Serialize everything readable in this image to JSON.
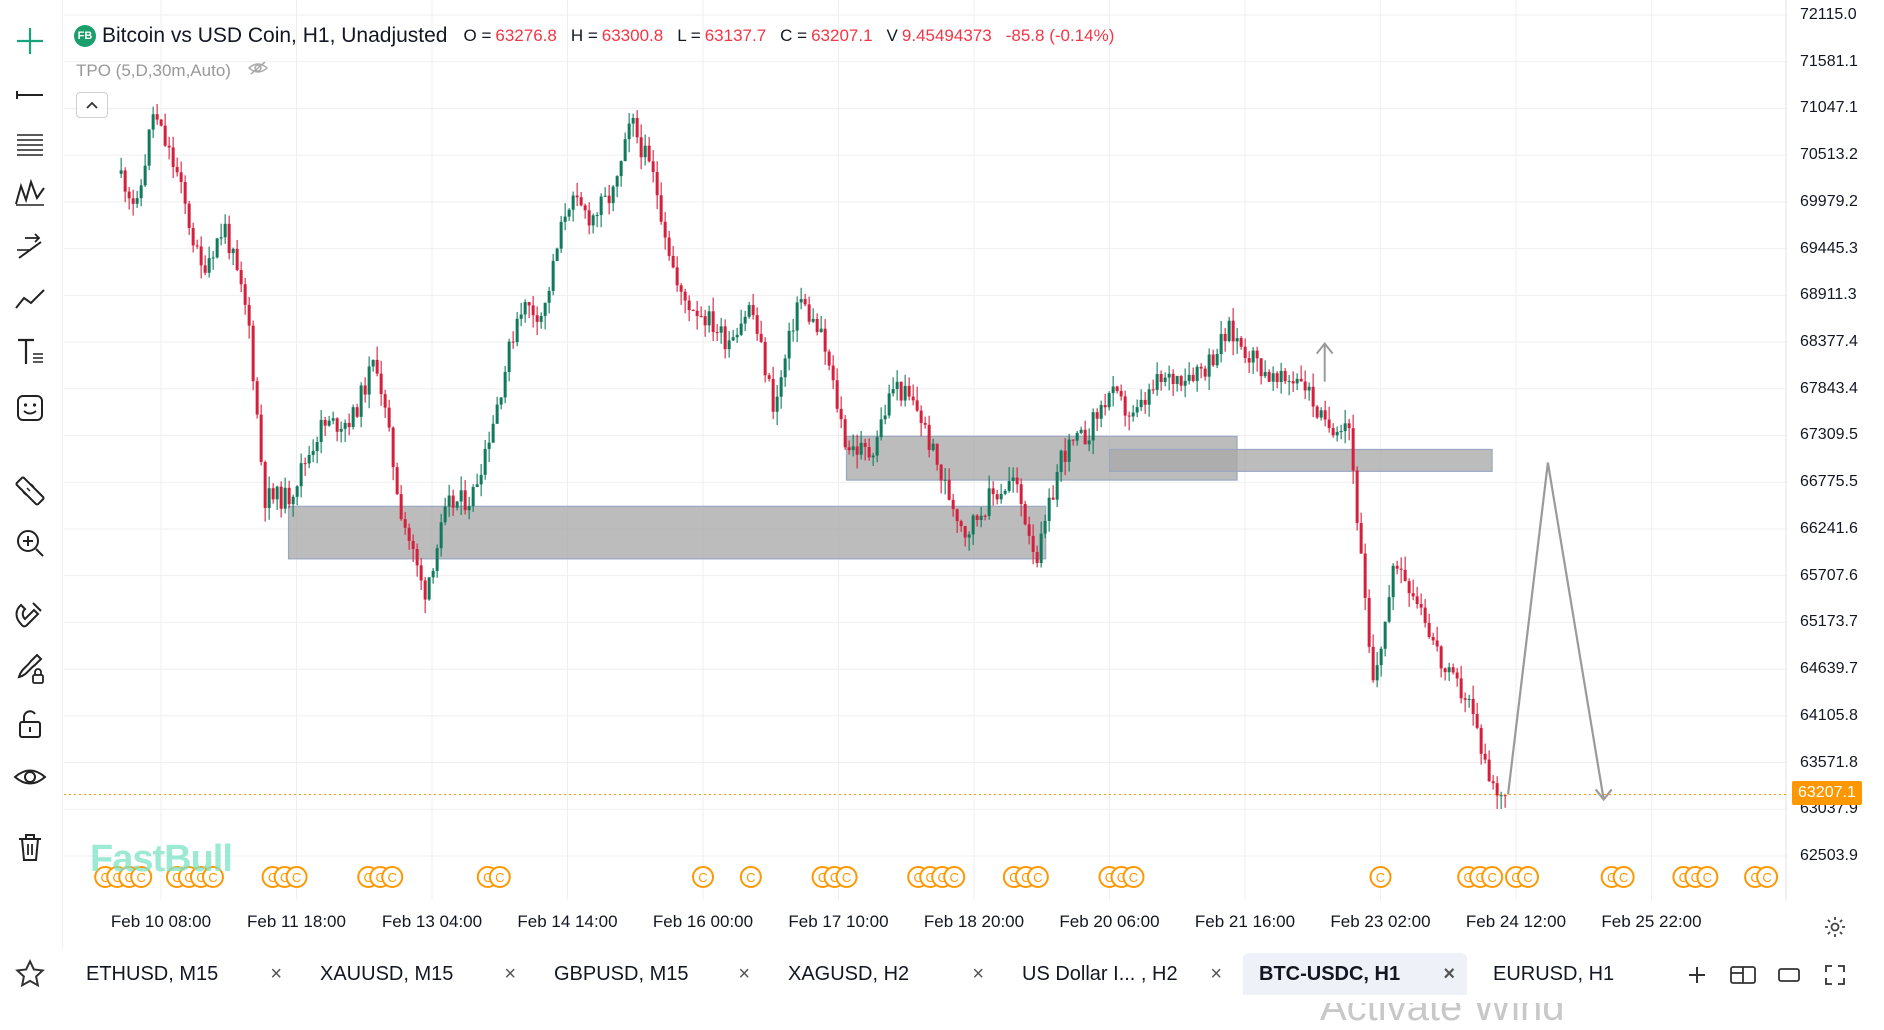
{
  "header": {
    "badge": "FB",
    "title": "Bitcoin vs USD Coin, H1, Unadjusted",
    "ohlc": [
      {
        "label": "O =",
        "value": "63276.8"
      },
      {
        "label": "H =",
        "value": "63300.8"
      },
      {
        "label": "L =",
        "value": "63137.7"
      },
      {
        "label": "C =",
        "value": "63207.1"
      },
      {
        "label": "V",
        "value": "9.45494373"
      }
    ],
    "change": "-85.8 (-0.14%)",
    "indicator": "TPO (5,D,30m,Auto)"
  },
  "colors": {
    "up": "#0f7a5c",
    "down": "#d61f3c",
    "box": "#a9a9a9",
    "orange": "#ff9800",
    "arrow": "#9a9a9a",
    "grid": "#efefef"
  },
  "toolbar": [
    "crosshair-icon",
    "horizontal-line-icon",
    "fib-retracement-icon",
    "pattern-icon",
    "projection-icon",
    "trend-line-icon",
    "text-tool-icon",
    "emoji-icon",
    "ruler-icon",
    "zoom-in-icon",
    "magnet-icon",
    "brush-lock-icon",
    "lock-icon",
    "eye-icon",
    "trash-icon"
  ],
  "price_axis": [
    "72115.0",
    "71581.1",
    "71047.1",
    "70513.2",
    "69979.2",
    "69445.3",
    "68911.3",
    "68377.4",
    "67843.4",
    "67309.5",
    "66775.5",
    "66241.6",
    "65707.6",
    "65173.7",
    "64639.7",
    "64105.8",
    "63571.8",
    "63037.9",
    "62503.9"
  ],
  "current_price": "63207.1",
  "time_axis": [
    "Feb 10 08:00",
    "Feb 11 18:00",
    "Feb 13 04:00",
    "Feb 14 14:00",
    "Feb 16 00:00",
    "Feb 17 10:00",
    "Feb 18 20:00",
    "Feb 20 06:00",
    "Feb 21 16:00",
    "Feb 23 02:00",
    "Feb 24 12:00",
    "Feb 25 22:00"
  ],
  "watermark": "FastBull",
  "os_watermark": "Activate Wind",
  "tabs": [
    {
      "label": "ETHUSD, M15",
      "active": false
    },
    {
      "label": "XAUUSD, M15",
      "active": false
    },
    {
      "label": "GBPUSD, M15",
      "active": false
    },
    {
      "label": "XAGUSD, H2",
      "active": false
    },
    {
      "label": "US Dollar I... , H2",
      "active": false
    },
    {
      "label": "BTC-USDC, H1",
      "active": true
    },
    {
      "label": "EURUSD, H1",
      "active": false
    }
  ],
  "tab_close": "×",
  "event_marker": "C",
  "chart_data": {
    "type": "candlestick",
    "symbol": "Bitcoin vs USD Coin",
    "interval": "H1",
    "y_range": [
      62503.9,
      72115.0
    ],
    "x_range": [
      "Feb 10 08:00",
      "Feb 25 22:00"
    ],
    "last_price": 63207.1,
    "close_path": [
      [
        "Feb 09 22:00",
        70300
      ],
      [
        "Feb 10 02:00",
        69900
      ],
      [
        "Feb 10 06:00",
        71000
      ],
      [
        "Feb 10 12:00",
        70300
      ],
      [
        "Feb 10 18:00",
        69200
      ],
      [
        "Feb 11 00:00",
        69700
      ],
      [
        "Feb 11 06:00",
        68600
      ],
      [
        "Feb 11 10:00",
        66600
      ],
      [
        "Feb 11 16:00",
        66600
      ],
      [
        "Feb 12 00:00",
        67400
      ],
      [
        "Feb 12 08:00",
        67500
      ],
      [
        "Feb 12 14:00",
        68200
      ],
      [
        "Feb 12 20:00",
        66500
      ],
      [
        "Feb 13 02:00",
        65500
      ],
      [
        "Feb 13 08:00",
        66500
      ],
      [
        "Feb 13 14:00",
        66600
      ],
      [
        "Feb 13 20:00",
        67600
      ],
      [
        "Feb 14 02:00",
        68800
      ],
      [
        "Feb 14 08:00",
        68700
      ],
      [
        "Feb 14 14:00",
        70000
      ],
      [
        "Feb 14 20:00",
        69800
      ],
      [
        "Feb 15 02:00",
        70100
      ],
      [
        "Feb 15 06:00",
        70900
      ],
      [
        "Feb 15 12:00",
        70200
      ],
      [
        "Feb 15 18:00",
        68900
      ],
      [
        "Feb 16 00:00",
        68700
      ],
      [
        "Feb 16 06:00",
        68400
      ],
      [
        "Feb 16 12:00",
        68800
      ],
      [
        "Feb 16 18:00",
        67600
      ],
      [
        "Feb 17 00:00",
        68900
      ],
      [
        "Feb 17 06:00",
        68400
      ],
      [
        "Feb 17 12:00",
        67200
      ],
      [
        "Feb 17 18:00",
        67100
      ],
      [
        "Feb 18 00:00",
        67900
      ],
      [
        "Feb 18 06:00",
        67600
      ],
      [
        "Feb 18 12:00",
        66800
      ],
      [
        "Feb 18 18:00",
        66200
      ],
      [
        "Feb 19 00:00",
        66600
      ],
      [
        "Feb 19 06:00",
        66800
      ],
      [
        "Feb 19 12:00",
        65900
      ],
      [
        "Feb 19 18:00",
        67100
      ],
      [
        "Feb 20 00:00",
        67300
      ],
      [
        "Feb 20 06:00",
        67800
      ],
      [
        "Feb 20 12:00",
        67500
      ],
      [
        "Feb 20 18:00",
        67900
      ],
      [
        "Feb 21 00:00",
        68000
      ],
      [
        "Feb 21 06:00",
        68100
      ],
      [
        "Feb 21 12:00",
        68500
      ],
      [
        "Feb 21 18:00",
        68200
      ],
      [
        "Feb 22 00:00",
        67900
      ],
      [
        "Feb 22 06:00",
        68000
      ],
      [
        "Feb 22 12:00",
        67400
      ],
      [
        "Feb 22 18:00",
        67500
      ],
      [
        "Feb 23 00:00",
        64400
      ],
      [
        "Feb 23 06:00",
        65900
      ],
      [
        "Feb 23 12:00",
        65400
      ],
      [
        "Feb 23 18:00",
        64600
      ],
      [
        "Feb 24 00:00",
        64300
      ],
      [
        "Feb 24 06:00",
        63300
      ],
      [
        "Feb 24 10:00",
        63207.1
      ]
    ],
    "zones": [
      {
        "from": "Feb 11 16:00",
        "to": "Feb 19 14:00",
        "price_low": 65900,
        "price_high": 66500
      },
      {
        "from": "Feb 17 12:00",
        "to": "Feb 21 14:00",
        "price_low": 66800,
        "price_high": 67300
      },
      {
        "from": "Feb 20 06:00",
        "to": "Feb 24 06:00",
        "price_low": 66900,
        "price_high": 67150
      }
    ],
    "projection": [
      [
        "Feb 24 10:00",
        63207.1
      ],
      [
        "Feb 24 20:00",
        67000
      ],
      [
        "Feb 25 10:00",
        63150
      ]
    ],
    "marker_up_arrow": [
      "Feb 22 12:00",
      68200
    ],
    "event_groups": [
      "Feb 09 18:00",
      "Feb 10 12:00",
      "Feb 11 12:00",
      "Feb 12 12:00",
      "Feb 13 18:00",
      "Feb 16 00:00",
      "Feb 16 12:00",
      "Feb 17 06:00",
      "Feb 18 06:00",
      "Feb 19 06:00",
      "Feb 20 06:00",
      "Feb 23 02:00",
      "Feb 24 00:00",
      "Feb 24 12:00",
      "Feb 25 12:00",
      "Feb 26 06:00",
      "Feb 27 00:00"
    ]
  }
}
